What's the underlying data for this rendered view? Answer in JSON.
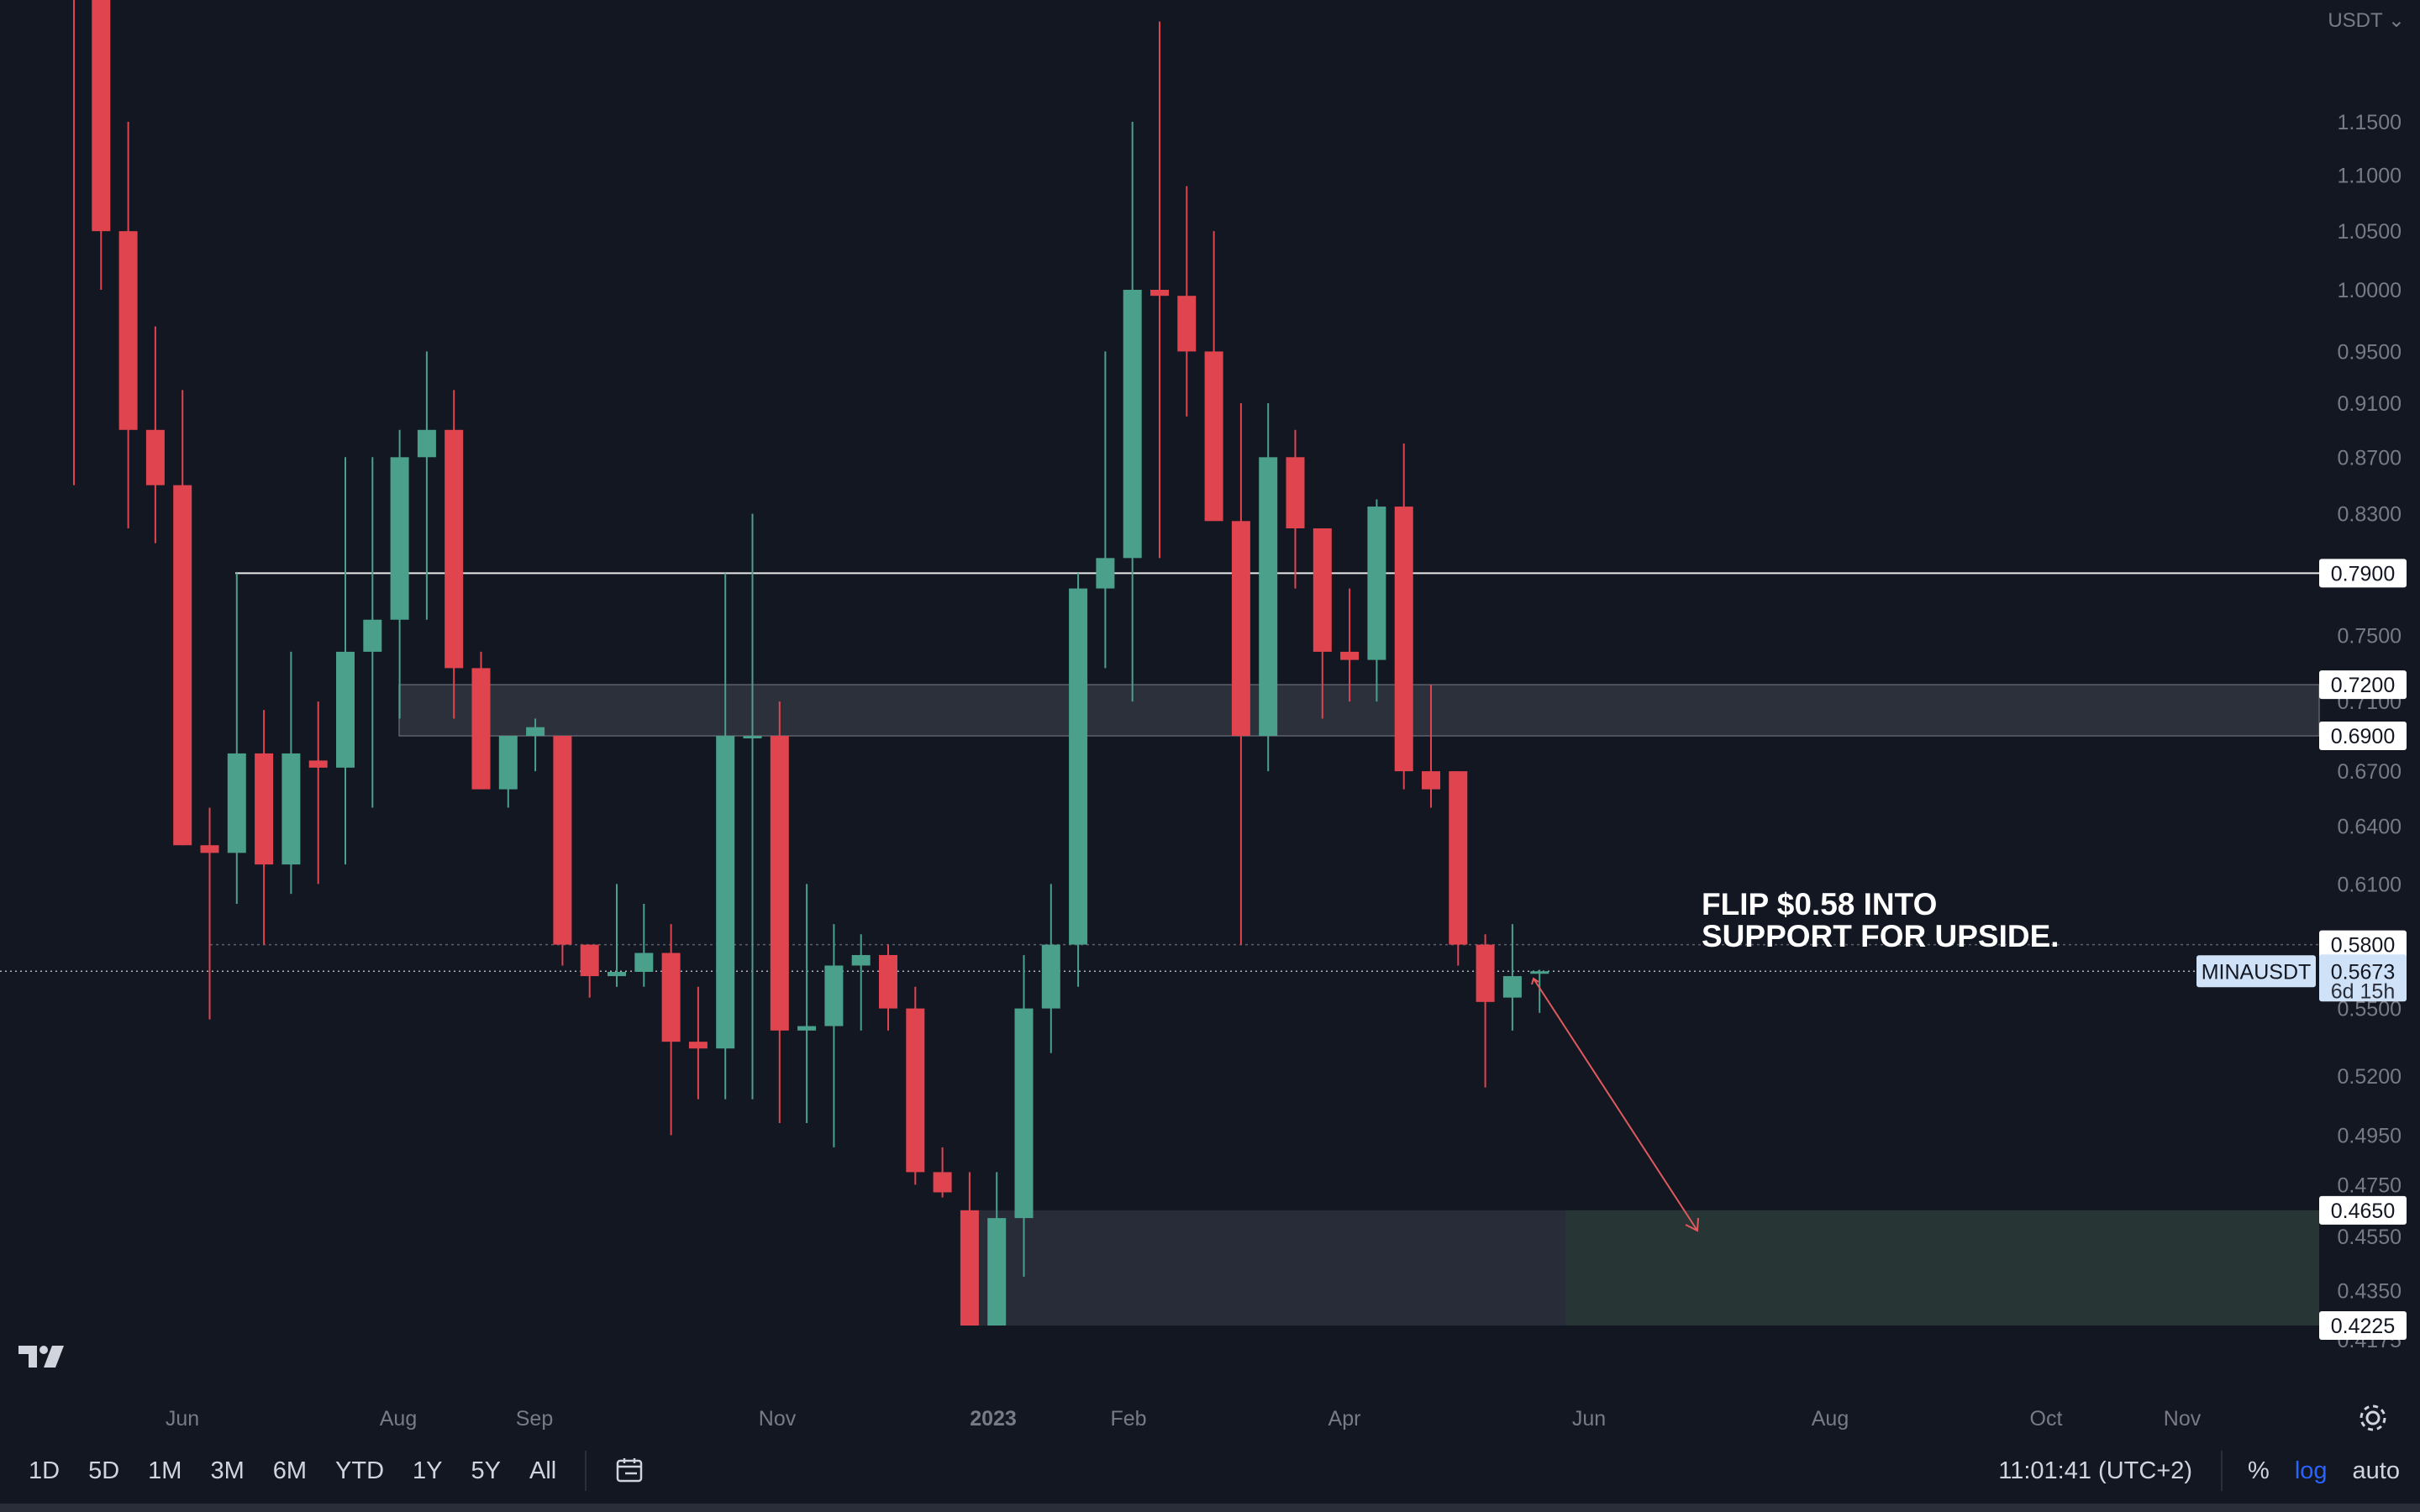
{
  "symbol_tag": "MINAUSDT",
  "currency": "USDT",
  "currency_icon": "chevron-down-icon",
  "annotation": {
    "line1": "FLIP $0.58 INTO",
    "line2": "SUPPORT FOR UPSIDE."
  },
  "price_ticks": [
    "1.1500",
    "1.1000",
    "1.0500",
    "1.0000",
    "0.9500",
    "0.9100",
    "0.8700",
    "0.8300",
    "0.7500",
    "0.7100",
    "0.6700",
    "0.6400",
    "0.6100",
    "0.5500",
    "0.5200",
    "0.4950",
    "0.4750",
    "0.4550",
    "0.4350",
    "0.4175"
  ],
  "price_tags": [
    {
      "label": "0.7900",
      "style": "white"
    },
    {
      "label": "0.7200",
      "style": "white"
    },
    {
      "label": "0.6900",
      "style": "white"
    },
    {
      "label": "0.5800",
      "style": "white"
    },
    {
      "label": "0.5673",
      "style": "current",
      "countdown": "6d 15h"
    },
    {
      "label": "0.4650",
      "style": "white"
    },
    {
      "label": "0.4225",
      "style": "white"
    }
  ],
  "time_labels": [
    {
      "label": "Jun",
      "bold": false
    },
    {
      "label": "Aug",
      "bold": false
    },
    {
      "label": "Sep",
      "bold": false
    },
    {
      "label": "Nov",
      "bold": false
    },
    {
      "label": "2023",
      "bold": true
    },
    {
      "label": "Feb",
      "bold": false
    },
    {
      "label": "Apr",
      "bold": false
    },
    {
      "label": "Jun",
      "bold": false
    },
    {
      "label": "Aug",
      "bold": false
    },
    {
      "label": "Oct",
      "bold": false
    },
    {
      "label": "Nov",
      "bold": false
    }
  ],
  "timeframes": [
    "1D",
    "5D",
    "1M",
    "3M",
    "6M",
    "YTD",
    "1Y",
    "5Y",
    "All"
  ],
  "clock": "11:01:41 (UTC+2)",
  "right_tools": {
    "percent": "%",
    "log": "log",
    "auto": "auto"
  },
  "colors": {
    "up": "#4aa08a",
    "down": "#e0444f",
    "background": "#131722",
    "current_tag": "#cfe2f8",
    "annotation_arrow": "#e05a5e"
  },
  "chart_data": {
    "type": "candlestick",
    "symbol": "MINAUSDT",
    "interval": "weekly",
    "y_scale": "log",
    "grid": false,
    "x_ticks": [
      "Jun",
      "Aug",
      "Sep",
      "Nov",
      "2023",
      "Feb",
      "Apr",
      "Jun",
      "Aug",
      "Oct",
      "Nov"
    ],
    "horizontal_lines": [
      0.79,
      0.58,
      0.5673
    ],
    "zones": [
      {
        "from": 0.69,
        "to": 0.72,
        "kind": "resistance"
      },
      {
        "from": 0.4225,
        "to": 0.465,
        "kind": "support"
      }
    ],
    "candles": [
      {
        "o": 1.53,
        "h": 1.6,
        "l": 0.85,
        "c": 1.32
      },
      {
        "o": 1.32,
        "h": 1.38,
        "l": 1.0,
        "c": 1.05
      },
      {
        "o": 1.05,
        "h": 1.15,
        "l": 0.82,
        "c": 0.89
      },
      {
        "o": 0.89,
        "h": 0.97,
        "l": 0.81,
        "c": 0.85
      },
      {
        "o": 0.85,
        "h": 0.92,
        "l": 0.63,
        "c": 0.63
      },
      {
        "o": 0.63,
        "h": 0.65,
        "l": 0.545,
        "c": 0.626
      },
      {
        "o": 0.626,
        "h": 0.79,
        "l": 0.6,
        "c": 0.68
      },
      {
        "o": 0.68,
        "h": 0.705,
        "l": 0.58,
        "c": 0.62
      },
      {
        "o": 0.62,
        "h": 0.74,
        "l": 0.605,
        "c": 0.68
      },
      {
        "o": 0.676,
        "h": 0.71,
        "l": 0.61,
        "c": 0.672
      },
      {
        "o": 0.672,
        "h": 0.87,
        "l": 0.62,
        "c": 0.74
      },
      {
        "o": 0.74,
        "h": 0.87,
        "l": 0.65,
        "c": 0.76
      },
      {
        "o": 0.76,
        "h": 0.89,
        "l": 0.7,
        "c": 0.87
      },
      {
        "o": 0.87,
        "h": 0.95,
        "l": 0.76,
        "c": 0.89
      },
      {
        "o": 0.89,
        "h": 0.92,
        "l": 0.7,
        "c": 0.73
      },
      {
        "o": 0.73,
        "h": 0.74,
        "l": 0.66,
        "c": 0.66
      },
      {
        "o": 0.66,
        "h": 0.69,
        "l": 0.65,
        "c": 0.69
      },
      {
        "o": 0.69,
        "h": 0.7,
        "l": 0.67,
        "c": 0.695
      },
      {
        "o": 0.69,
        "h": 0.69,
        "l": 0.57,
        "c": 0.58
      },
      {
        "o": 0.58,
        "h": 0.58,
        "l": 0.555,
        "c": 0.565
      },
      {
        "o": 0.565,
        "h": 0.61,
        "l": 0.56,
        "c": 0.567
      },
      {
        "o": 0.567,
        "h": 0.6,
        "l": 0.56,
        "c": 0.576
      },
      {
        "o": 0.576,
        "h": 0.59,
        "l": 0.495,
        "c": 0.535
      },
      {
        "o": 0.535,
        "h": 0.56,
        "l": 0.51,
        "c": 0.532
      },
      {
        "o": 0.532,
        "h": 0.79,
        "l": 0.51,
        "c": 0.69
      },
      {
        "o": 0.69,
        "h": 0.83,
        "l": 0.51,
        "c": 0.69
      },
      {
        "o": 0.69,
        "h": 0.71,
        "l": 0.5,
        "c": 0.54
      },
      {
        "o": 0.54,
        "h": 0.61,
        "l": 0.5,
        "c": 0.542
      },
      {
        "o": 0.542,
        "h": 0.59,
        "l": 0.49,
        "c": 0.57
      },
      {
        "o": 0.57,
        "h": 0.585,
        "l": 0.54,
        "c": 0.575
      },
      {
        "o": 0.575,
        "h": 0.58,
        "l": 0.54,
        "c": 0.55
      },
      {
        "o": 0.55,
        "h": 0.56,
        "l": 0.475,
        "c": 0.48
      },
      {
        "o": 0.48,
        "h": 0.49,
        "l": 0.47,
        "c": 0.472
      },
      {
        "o": 0.465,
        "h": 0.48,
        "l": 0.4225,
        "c": 0.4225
      },
      {
        "o": 0.4225,
        "h": 0.48,
        "l": 0.425,
        "c": 0.462
      },
      {
        "o": 0.462,
        "h": 0.575,
        "l": 0.44,
        "c": 0.55
      },
      {
        "o": 0.55,
        "h": 0.61,
        "l": 0.53,
        "c": 0.58
      },
      {
        "o": 0.58,
        "h": 0.79,
        "l": 0.56,
        "c": 0.78
      },
      {
        "o": 0.78,
        "h": 0.95,
        "l": 0.73,
        "c": 0.8
      },
      {
        "o": 0.8,
        "h": 1.15,
        "l": 0.71,
        "c": 1.0
      },
      {
        "o": 1.0,
        "h": 1.25,
        "l": 0.8,
        "c": 0.995
      },
      {
        "o": 0.995,
        "h": 1.09,
        "l": 0.9,
        "c": 0.95
      },
      {
        "o": 0.95,
        "h": 1.05,
        "l": 0.83,
        "c": 0.825
      },
      {
        "o": 0.825,
        "h": 0.91,
        "l": 0.58,
        "c": 0.69
      },
      {
        "o": 0.69,
        "h": 0.91,
        "l": 0.67,
        "c": 0.87
      },
      {
        "o": 0.87,
        "h": 0.89,
        "l": 0.78,
        "c": 0.82
      },
      {
        "o": 0.82,
        "h": 0.82,
        "l": 0.7,
        "c": 0.74
      },
      {
        "o": 0.74,
        "h": 0.78,
        "l": 0.71,
        "c": 0.735
      },
      {
        "o": 0.735,
        "h": 0.84,
        "l": 0.71,
        "c": 0.835
      },
      {
        "o": 0.835,
        "h": 0.88,
        "l": 0.66,
        "c": 0.67
      },
      {
        "o": 0.67,
        "h": 0.72,
        "l": 0.65,
        "c": 0.66
      },
      {
        "o": 0.67,
        "h": 0.67,
        "l": 0.57,
        "c": 0.58
      },
      {
        "o": 0.58,
        "h": 0.585,
        "l": 0.515,
        "c": 0.553
      },
      {
        "o": 0.555,
        "h": 0.59,
        "l": 0.54,
        "c": 0.565
      },
      {
        "o": 0.5673,
        "h": 0.568,
        "l": 0.548,
        "c": 0.5673
      }
    ]
  }
}
